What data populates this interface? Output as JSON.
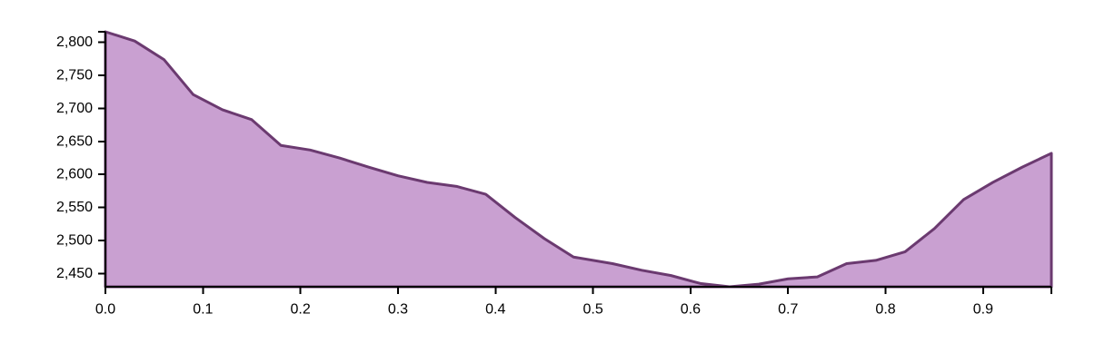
{
  "chart_data": {
    "type": "area",
    "title": "",
    "xlabel": "",
    "ylabel": "",
    "xlim": [
      0,
      0.97
    ],
    "ylim": [
      2430,
      2816
    ],
    "x_ticks": [
      "0.0",
      "0.1",
      "0.2",
      "0.3",
      "0.4",
      "0.5",
      "0.6",
      "0.7",
      "0.8",
      "0.9"
    ],
    "y_ticks": [
      "2,450",
      "2,500",
      "2,550",
      "2,600",
      "2,650",
      "2,700",
      "2,750",
      "2,800"
    ],
    "grid": false,
    "fill_color": "#c9a0d1",
    "line_color": "#6b3a70",
    "series": [
      {
        "x": [
          0.0,
          0.03,
          0.06,
          0.09,
          0.12,
          0.15,
          0.18,
          0.21,
          0.24,
          0.27,
          0.3,
          0.33,
          0.36,
          0.39,
          0.42,
          0.45,
          0.48,
          0.52,
          0.55,
          0.58,
          0.61,
          0.64,
          0.67,
          0.7,
          0.73,
          0.76,
          0.79,
          0.82,
          0.85,
          0.88,
          0.91,
          0.94,
          0.97
        ],
        "values": [
          2816,
          2802,
          2774,
          2721,
          2698,
          2683,
          2644,
          2637,
          2625,
          2611,
          2598,
          2588,
          2582,
          2570,
          2535,
          2503,
          2475,
          2465,
          2455,
          2447,
          2435,
          2430,
          2434,
          2442,
          2445,
          2465,
          2470,
          2483,
          2518,
          2562,
          2588,
          2611,
          2632
        ]
      }
    ]
  }
}
